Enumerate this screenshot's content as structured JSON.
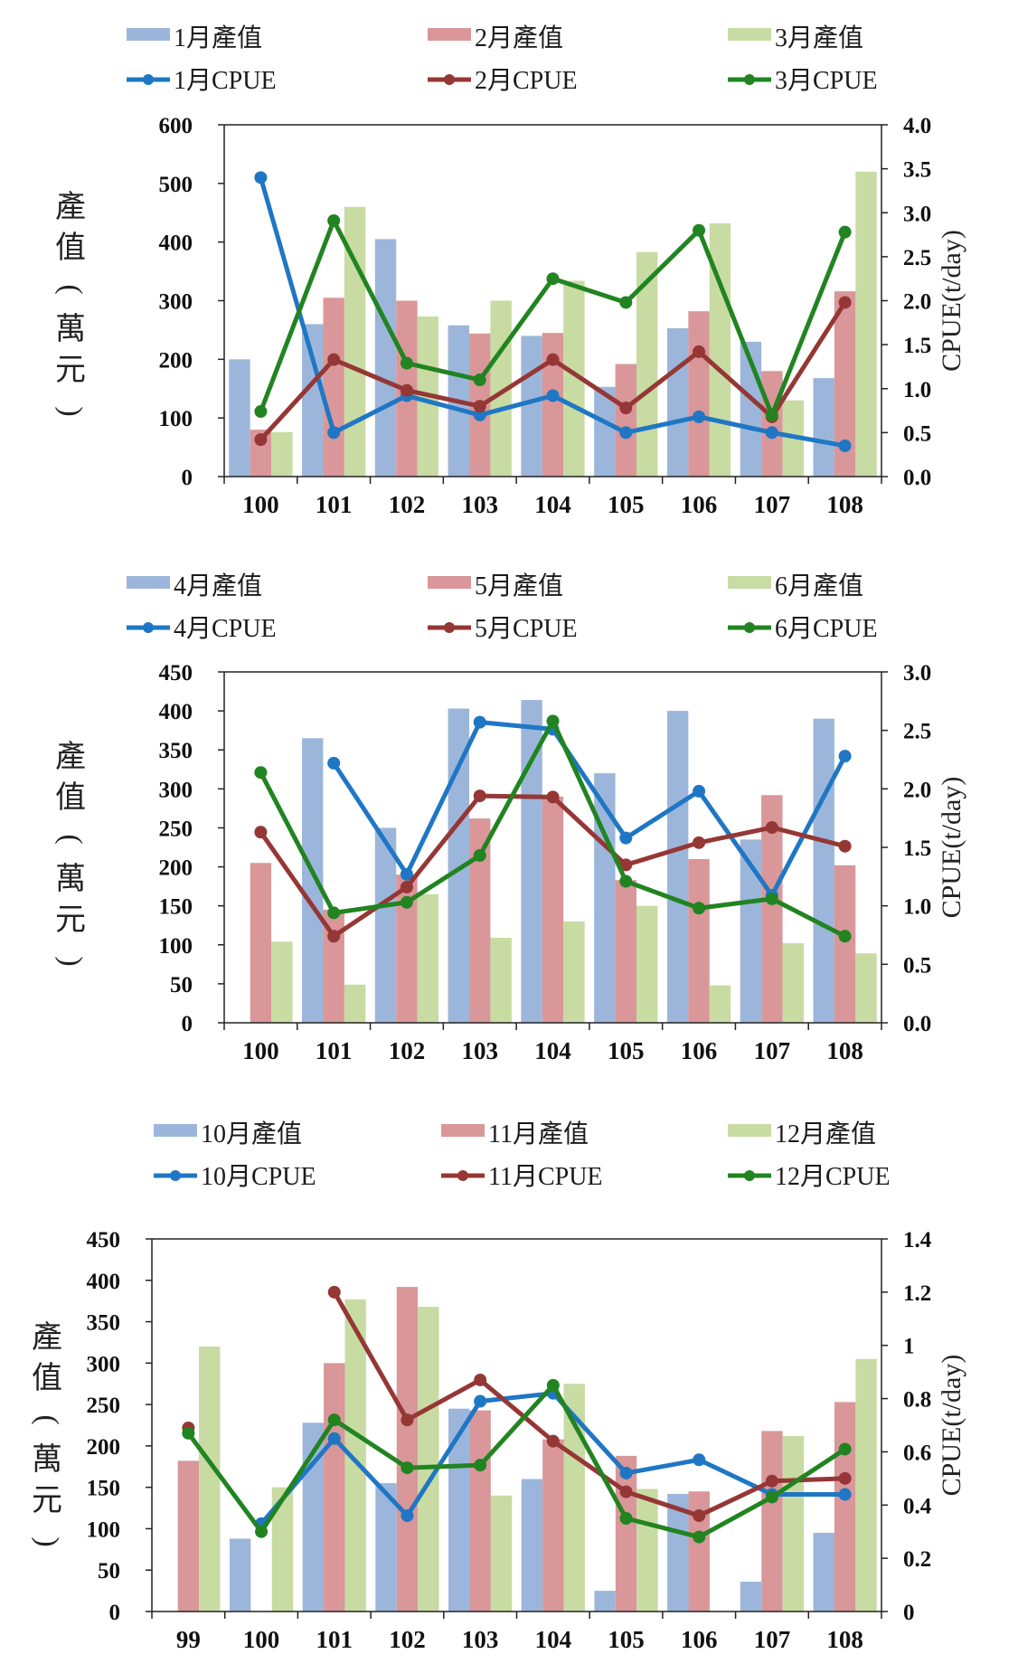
{
  "colors": {
    "bar": [
      "#9cb6db",
      "#d9979a",
      "#c8dba3"
    ],
    "line": [
      "#1f77c4",
      "#953735",
      "#218421"
    ],
    "axis": "#222222",
    "plot_bg": "#ffffff"
  },
  "chart_data": [
    {
      "type": "bar+line",
      "categories": [
        "100",
        "101",
        "102",
        "103",
        "104",
        "105",
        "106",
        "107",
        "108"
      ],
      "ylabel": [
        "產",
        "值",
        "(",
        "萬",
        "元",
        ")"
      ],
      "y2label": "CPUE(t/day)",
      "ylim": [
        0,
        600
      ],
      "yticks": [
        0,
        100,
        200,
        300,
        400,
        500,
        600
      ],
      "y2lim": [
        0,
        4
      ],
      "y2ticks": [
        "0.0",
        "0.5",
        "1.0",
        "1.5",
        "2.0",
        "2.5",
        "3.0",
        "3.5",
        "4.0"
      ],
      "bar_series": [
        {
          "name": "1月產值",
          "values": [
            200,
            260,
            405,
            258,
            240,
            153,
            253,
            230,
            168
          ]
        },
        {
          "name": "2月產值",
          "values": [
            80,
            305,
            300,
            244,
            245,
            192,
            282,
            180,
            316
          ]
        },
        {
          "name": "3月產值",
          "values": [
            76,
            460,
            273,
            300,
            334,
            383,
            432,
            130,
            520
          ]
        }
      ],
      "line_series": [
        {
          "name": "1月CPUE",
          "values": [
            3.4,
            0.5,
            0.92,
            0.7,
            0.92,
            0.5,
            0.68,
            0.5,
            0.35
          ]
        },
        {
          "name": "2月CPUE",
          "values": [
            0.42,
            1.33,
            0.98,
            0.8,
            1.33,
            0.78,
            1.42,
            0.68,
            1.98
          ]
        },
        {
          "name": "3月CPUE",
          "values": [
            0.74,
            2.91,
            1.29,
            1.1,
            2.25,
            1.98,
            2.8,
            0.7,
            2.78
          ]
        }
      ]
    },
    {
      "type": "bar+line",
      "categories": [
        "100",
        "101",
        "102",
        "103",
        "104",
        "105",
        "106",
        "107",
        "108"
      ],
      "ylabel": [
        "產",
        "值",
        "(",
        "萬",
        "元",
        ")"
      ],
      "y2label": "CPUE(t/day)",
      "ylim": [
        0,
        450
      ],
      "yticks": [
        0,
        50,
        100,
        150,
        200,
        250,
        300,
        350,
        400,
        450
      ],
      "y2lim": [
        0,
        3
      ],
      "y2ticks": [
        "0.0",
        "0.5",
        "1.0",
        "1.5",
        "2.0",
        "2.5",
        "3.0"
      ],
      "bar_series": [
        {
          "name": "4月產值",
          "values": [
            0,
            365,
            250,
            403,
            414,
            320,
            400,
            235,
            390
          ]
        },
        {
          "name": "5月產值",
          "values": [
            205,
            145,
            190,
            262,
            290,
            183,
            210,
            292,
            202
          ]
        },
        {
          "name": "6月產值",
          "values": [
            104,
            49,
            165,
            109,
            130,
            150,
            48,
            102,
            89
          ]
        }
      ],
      "line_series": [
        {
          "name": "4月CPUE",
          "values": [
            null,
            2.22,
            1.27,
            2.57,
            2.51,
            1.58,
            1.98,
            1.09,
            2.28
          ]
        },
        {
          "name": "5月CPUE",
          "values": [
            1.63,
            0.74,
            1.16,
            1.94,
            1.93,
            1.35,
            1.54,
            1.67,
            1.51
          ]
        },
        {
          "name": "6月CPUE",
          "values": [
            2.14,
            0.94,
            1.03,
            1.43,
            2.58,
            1.21,
            0.98,
            1.06,
            0.74
          ]
        }
      ]
    },
    {
      "type": "bar+line",
      "categories": [
        "99",
        "100",
        "101",
        "102",
        "103",
        "104",
        "105",
        "106",
        "107",
        "108"
      ],
      "ylabel": [
        "產",
        "值",
        "(",
        "萬",
        "元",
        ")"
      ],
      "y2label": "CPUE(t/day)",
      "ylim": [
        0,
        450
      ],
      "yticks": [
        0,
        50,
        100,
        150,
        200,
        250,
        300,
        350,
        400,
        450
      ],
      "y2lim": [
        0,
        1.4
      ],
      "y2ticks": [
        "0",
        "0.2",
        "0.4",
        "0.6",
        "0.8",
        "1",
        "1.2",
        "1.4"
      ],
      "bar_series": [
        {
          "name": "10月產值",
          "values": [
            0,
            88,
            228,
            155,
            245,
            160,
            25,
            142,
            36,
            95
          ]
        },
        {
          "name": "11月產值",
          "values": [
            182,
            0,
            300,
            392,
            243,
            208,
            188,
            145,
            218,
            253
          ]
        },
        {
          "name": "12月產值",
          "values": [
            320,
            150,
            377,
            368,
            140,
            275,
            148,
            0,
            212,
            305
          ]
        }
      ],
      "line_series": [
        {
          "name": "10月CPUE",
          "values": [
            null,
            0.33,
            0.65,
            0.36,
            0.79,
            0.82,
            0.52,
            0.57,
            0.44,
            0.44
          ]
        },
        {
          "name": "11月CPUE",
          "values": [
            0.69,
            null,
            1.2,
            0.72,
            0.87,
            0.64,
            0.45,
            0.36,
            0.49,
            0.5
          ]
        },
        {
          "name": "12月CPUE",
          "values": [
            0.67,
            0.3,
            0.72,
            0.54,
            0.55,
            0.85,
            0.35,
            0.28,
            0.43,
            0.61
          ]
        }
      ]
    }
  ]
}
